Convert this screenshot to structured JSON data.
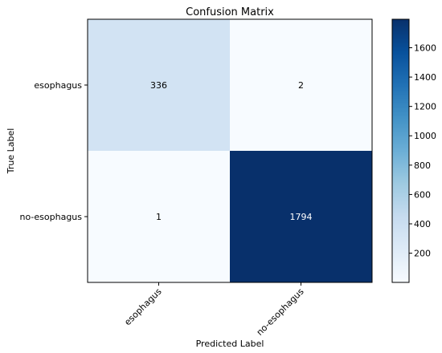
{
  "chart_data": {
    "type": "heatmap",
    "title": "Confusion Matrix",
    "xlabel": "Predicted Label",
    "ylabel": "True Label",
    "x_categories": [
      "esophagus",
      "no-esophagus"
    ],
    "y_categories": [
      "esophagus",
      "no-esophagus"
    ],
    "values": [
      [
        336,
        2
      ],
      [
        1,
        1794
      ]
    ],
    "colormap": "Blues",
    "colorbar": {
      "range": [
        1,
        1794
      ],
      "ticks": [
        200,
        400,
        600,
        800,
        1000,
        1200,
        1400,
        1600
      ]
    }
  }
}
